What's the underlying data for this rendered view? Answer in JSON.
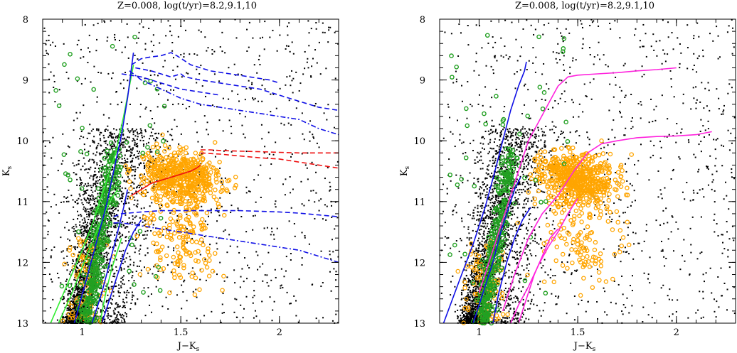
{
  "chart_data": [
    {
      "type": "scatter",
      "title": "Z=0.008, log(t/yr)=8.2,9.1,10",
      "xlabel": "J−K",
      "xlabel_sub": "s",
      "ylabel": "K",
      "ylabel_sub": "s",
      "xlim": [
        0.8,
        2.3
      ],
      "ylim": [
        13,
        8
      ],
      "y_inverted": true,
      "xticks": [
        1,
        1.5,
        2
      ],
      "xtick_labels": [
        "1",
        "1.5",
        "2"
      ],
      "yticks": [
        8,
        9,
        10,
        11,
        12,
        13
      ],
      "ytick_labels": [
        "8",
        "9",
        "10",
        "11",
        "12",
        "13"
      ],
      "grid": false,
      "colors": {
        "field": "#000000",
        "green_stars": "#22a022",
        "orange_stars": "#ffa500",
        "track_blue": "#1010e6",
        "track_green": "#33ee33",
        "track_red": "#ee1111",
        "track_magenta": "#ff22dd"
      },
      "series": [
        {
          "style": "solid",
          "color": "#33ee33",
          "x": [
            0.84,
            0.92,
            1.0,
            1.06,
            1.12,
            1.17,
            1.21,
            1.24,
            1.26
          ],
          "y": [
            13.0,
            12.4,
            11.8,
            11.3,
            10.7,
            10.2,
            9.6,
            9.1,
            8.75
          ]
        },
        {
          "style": "solid",
          "color": "#33ee33",
          "x": [
            0.88,
            0.95,
            1.01,
            1.06,
            1.1,
            1.14,
            1.18
          ],
          "y": [
            13.0,
            12.5,
            12.0,
            11.6,
            11.3,
            11.0,
            10.8
          ]
        },
        {
          "style": "solid",
          "color": "#33ee33",
          "x": [
            1.09,
            1.12,
            1.15,
            1.18,
            1.2
          ],
          "y": [
            13.0,
            12.5,
            12.1,
            11.8,
            11.6
          ]
        },
        {
          "style": "solid",
          "color": "#1010e6",
          "x": [
            0.96,
            1.02,
            1.07,
            1.12,
            1.16,
            1.2,
            1.23,
            1.25,
            1.26
          ],
          "y": [
            13.0,
            12.3,
            11.7,
            11.1,
            10.5,
            9.9,
            9.3,
            8.8,
            8.55
          ]
        },
        {
          "style": "solid",
          "color": "#1010e6",
          "x": [
            1.05,
            1.1,
            1.14,
            1.18,
            1.21,
            1.23
          ],
          "y": [
            13.0,
            12.5,
            12.0,
            11.5,
            11.1,
            10.8
          ]
        },
        {
          "style": "solid",
          "color": "#1010e6",
          "x": [
            1.1,
            1.14,
            1.18,
            1.22,
            1.26,
            1.3
          ],
          "y": [
            13.0,
            12.6,
            12.2,
            11.8,
            11.5,
            11.3
          ]
        },
        {
          "style": "dashed",
          "color": "#1010e6",
          "x": [
            1.25,
            1.3,
            1.35,
            1.4,
            1.45,
            1.48,
            1.55,
            1.65,
            1.75,
            1.85,
            1.95,
            2.0
          ],
          "y": [
            8.75,
            8.65,
            8.62,
            8.6,
            8.55,
            8.6,
            8.75,
            8.85,
            8.9,
            8.95,
            9.0,
            9.05
          ]
        },
        {
          "style": "dashed",
          "color": "#1010e6",
          "x": [
            1.27,
            1.35,
            1.45,
            1.5,
            1.52,
            1.6,
            1.7,
            1.8,
            1.9,
            2.0,
            2.1,
            2.2,
            2.3
          ],
          "y": [
            8.8,
            8.85,
            8.95,
            8.9,
            8.95,
            9.0,
            9.05,
            9.1,
            9.15,
            9.25,
            9.35,
            9.45,
            9.5
          ]
        },
        {
          "style": "dashed",
          "color": "#1010e6",
          "x": [
            1.2,
            1.3,
            1.4,
            1.5,
            1.6,
            1.7
          ],
          "y": [
            8.9,
            8.95,
            9.05,
            9.15,
            9.2,
            9.25
          ]
        },
        {
          "style": "dashdot",
          "color": "#1010e6",
          "x": [
            1.24,
            1.3,
            1.4,
            1.5,
            1.6,
            1.7,
            1.8,
            1.9,
            2.0,
            2.1,
            2.2,
            2.3
          ],
          "y": [
            8.85,
            9.0,
            9.15,
            9.3,
            9.4,
            9.45,
            9.5,
            9.55,
            9.6,
            9.65,
            9.8,
            9.9
          ]
        },
        {
          "style": "dashed",
          "color": "#1010e6",
          "x": [
            1.16,
            1.2,
            1.3,
            1.4,
            1.5,
            1.6,
            1.7,
            1.8,
            1.9,
            2.0,
            2.1,
            2.2,
            2.3
          ],
          "y": [
            11.25,
            11.2,
            11.17,
            11.15,
            11.15,
            11.15,
            11.15,
            11.15,
            11.16,
            11.17,
            11.19,
            11.22,
            11.25
          ]
        },
        {
          "style": "dashdot",
          "color": "#1010e6",
          "x": [
            1.16,
            1.2,
            1.3,
            1.4,
            1.5,
            1.6,
            1.7,
            1.8,
            1.9,
            2.0,
            2.1,
            2.2,
            2.3
          ],
          "y": [
            11.35,
            11.35,
            11.4,
            11.45,
            11.5,
            11.55,
            11.6,
            11.65,
            11.7,
            11.75,
            11.8,
            11.9,
            12.0
          ]
        },
        {
          "style": "solid",
          "color": "#ee1111",
          "x": [
            1.25,
            1.3,
            1.35,
            1.4,
            1.45,
            1.5,
            1.55,
            1.58,
            1.6
          ],
          "y": [
            10.9,
            10.8,
            10.7,
            10.65,
            10.6,
            10.55,
            10.5,
            10.45,
            10.4
          ]
        },
        {
          "style": "dashed",
          "color": "#ee1111",
          "x": [
            1.6,
            1.65,
            1.7,
            1.8,
            1.9,
            2.0,
            2.1,
            2.2,
            2.3
          ],
          "y": [
            10.15,
            10.15,
            10.16,
            10.17,
            10.18,
            10.19,
            10.2,
            10.2,
            10.2
          ]
        },
        {
          "style": "dashed",
          "color": "#ee1111",
          "x": [
            1.6,
            1.7,
            1.8,
            1.9,
            2.0,
            2.1,
            2.2,
            2.3
          ],
          "y": [
            10.2,
            10.22,
            10.25,
            10.28,
            10.3,
            10.35,
            10.4,
            10.45
          ]
        }
      ]
    },
    {
      "type": "scatter",
      "title": "Z=0.008, log(t/yr)=8.2,9.1,10",
      "xlabel": "J−K",
      "xlabel_sub": "s",
      "ylabel": "K",
      "ylabel_sub": "s",
      "xlim": [
        0.8,
        2.3
      ],
      "ylim": [
        13,
        8
      ],
      "y_inverted": true,
      "xticks": [
        1,
        1.5,
        2
      ],
      "xtick_labels": [
        "1",
        "1.5",
        "2"
      ],
      "yticks": [
        8,
        9,
        10,
        11,
        12,
        13
      ],
      "ytick_labels": [
        "8",
        "9",
        "10",
        "11",
        "12",
        "13"
      ],
      "grid": false,
      "colors": {
        "field": "#000000",
        "green_stars": "#22a022",
        "orange_stars": "#ffa500",
        "track_blue": "#1010e6",
        "track_magenta": "#ff22dd"
      },
      "series": [
        {
          "style": "solid",
          "color": "#1010e6",
          "x": [
            0.82,
            0.9,
            0.97,
            1.03,
            1.08,
            1.12,
            1.16,
            1.2,
            1.23,
            1.24
          ],
          "y": [
            13.0,
            12.3,
            11.7,
            11.1,
            10.5,
            10.0,
            9.5,
            9.1,
            8.85,
            8.7
          ]
        },
        {
          "style": "solid",
          "color": "#1010e6",
          "x": [
            0.97,
            1.02,
            1.07,
            1.11,
            1.15,
            1.18,
            1.21
          ],
          "y": [
            13.0,
            12.5,
            12.0,
            11.5,
            11.1,
            10.8,
            10.6
          ]
        },
        {
          "style": "solid",
          "color": "#1010e6",
          "x": [
            1.07,
            1.1,
            1.14,
            1.18,
            1.22,
            1.26
          ],
          "y": [
            13.0,
            12.5,
            12.0,
            11.6,
            11.3,
            11.1
          ]
        },
        {
          "style": "solid",
          "color": "#ff22dd",
          "x": [
            1.0,
            1.05,
            1.1,
            1.15,
            1.2,
            1.25,
            1.3,
            1.35,
            1.4,
            1.45,
            1.5,
            1.6,
            1.7,
            1.8,
            1.9,
            2.0
          ],
          "y": [
            12.5,
            12.0,
            11.5,
            11.0,
            10.5,
            10.0,
            9.7,
            9.4,
            9.1,
            8.95,
            8.92,
            8.9,
            8.88,
            8.85,
            8.83,
            8.8
          ]
        },
        {
          "style": "solid",
          "color": "#ff22dd",
          "x": [
            1.12,
            1.18,
            1.25,
            1.32,
            1.4,
            1.48,
            1.55,
            1.62,
            1.7,
            1.8,
            1.9,
            2.0,
            2.1,
            2.18
          ],
          "y": [
            12.8,
            12.2,
            11.6,
            11.2,
            10.9,
            10.5,
            10.2,
            10.05,
            10.0,
            9.95,
            9.93,
            9.92,
            9.9,
            9.85
          ]
        },
        {
          "style": "solid",
          "color": "#ff22dd",
          "x": [
            1.16,
            1.2,
            1.25,
            1.3,
            1.35,
            1.4,
            1.45,
            1.5
          ],
          "y": [
            13.0,
            12.7,
            12.4,
            12.05,
            11.75,
            11.5,
            11.2,
            10.95
          ]
        },
        {
          "style": "solid",
          "color": "#ff22dd",
          "x": [
            1.2,
            1.24,
            1.28,
            1.32,
            1.36,
            1.4
          ],
          "y": [
            13.0,
            12.6,
            12.2,
            11.9,
            11.6,
            11.45
          ]
        }
      ]
    }
  ]
}
